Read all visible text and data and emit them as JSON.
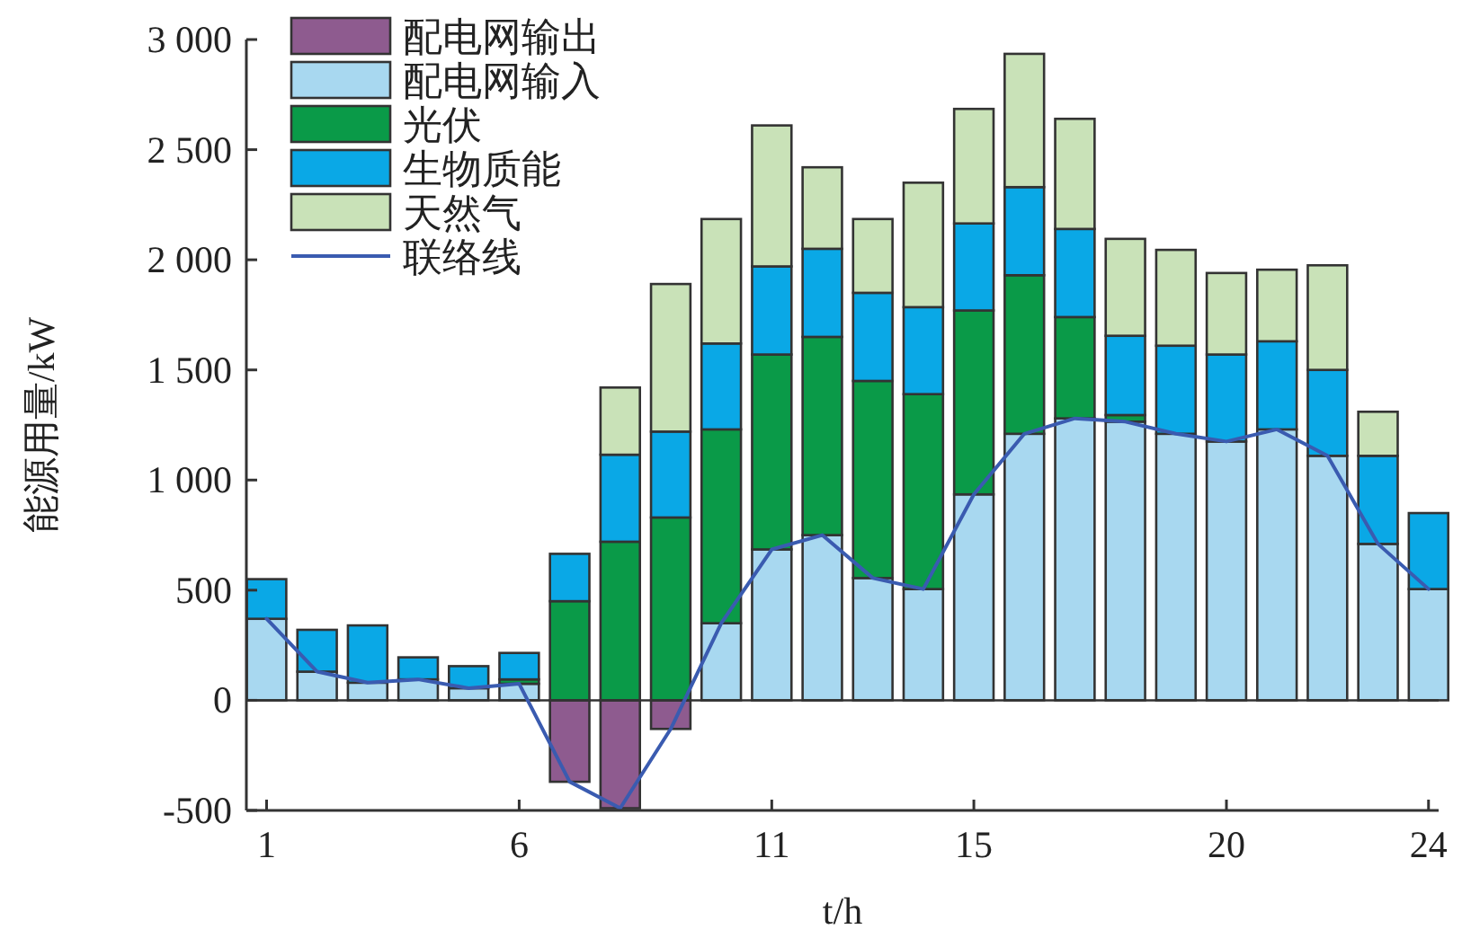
{
  "chart_data": {
    "type": "bar",
    "stacked": true,
    "xlabel": "t/h",
    "ylabel": "能源用量/kW",
    "x": [
      1,
      2,
      3,
      4,
      5,
      6,
      7,
      8,
      9,
      10,
      11,
      12,
      13,
      14,
      15,
      16,
      17,
      18,
      19,
      20,
      21,
      22,
      23,
      24
    ],
    "xlim": [
      0.6,
      24.2
    ],
    "xticks": [
      1,
      6,
      11,
      15,
      20,
      24
    ],
    "ylim": [
      -500,
      3000
    ],
    "yticks": [
      {
        "value": -500,
        "label": "-500"
      },
      0,
      500,
      {
        "value": 1000,
        "label": "1 000"
      },
      {
        "value": 1500,
        "label": "1 500"
      },
      {
        "value": 2000,
        "label": "2 000"
      },
      {
        "value": 2500,
        "label": "2 500"
      },
      {
        "value": 3000,
        "label": "3 000"
      }
    ],
    "legend": "top left",
    "grid": false,
    "ref_lines": [
      {
        "axis": "y",
        "value": 0,
        "color": "#333333"
      }
    ],
    "series": [
      {
        "name": "配电网输出",
        "color": "#8e5b8f",
        "values": [
          0,
          0,
          0,
          0,
          0,
          0,
          -370,
          -490,
          -130,
          0,
          0,
          0,
          0,
          0,
          0,
          0,
          0,
          0,
          0,
          0,
          0,
          0,
          0,
          0
        ]
      },
      {
        "name": "配电网输入",
        "color": "#a8d8f0",
        "values": [
          370,
          130,
          80,
          95,
          55,
          75,
          0,
          0,
          0,
          350,
          685,
          750,
          555,
          505,
          935,
          1210,
          1280,
          1265,
          1210,
          1175,
          1230,
          1110,
          710,
          505
        ]
      },
      {
        "name": "光伏",
        "color": "#0a9a48",
        "values": [
          0,
          0,
          0,
          0,
          0,
          20,
          450,
          720,
          830,
          880,
          885,
          900,
          895,
          885,
          835,
          720,
          460,
          30,
          0,
          0,
          0,
          0,
          0,
          0
        ]
      },
      {
        "name": "生物质能",
        "color": "#0aa8e6",
        "values": [
          180,
          190,
          260,
          100,
          100,
          120,
          215,
          395,
          390,
          390,
          400,
          400,
          400,
          395,
          395,
          400,
          400,
          360,
          400,
          395,
          400,
          390,
          400,
          345
        ]
      },
      {
        "name": "天然气",
        "color": "#c9e2b8",
        "values": [
          0,
          0,
          0,
          0,
          0,
          0,
          0,
          305,
          670,
          565,
          640,
          370,
          335,
          565,
          520,
          605,
          500,
          440,
          435,
          370,
          325,
          475,
          200,
          0
        ]
      },
      {
        "name": "联络线",
        "type": "line",
        "color": "#3a5bb0",
        "values": [
          370,
          130,
          80,
          95,
          55,
          75,
          -370,
          -490,
          -130,
          350,
          685,
          750,
          555,
          505,
          935,
          1210,
          1280,
          1265,
          1210,
          1175,
          1230,
          1110,
          710,
          505
        ]
      }
    ]
  }
}
